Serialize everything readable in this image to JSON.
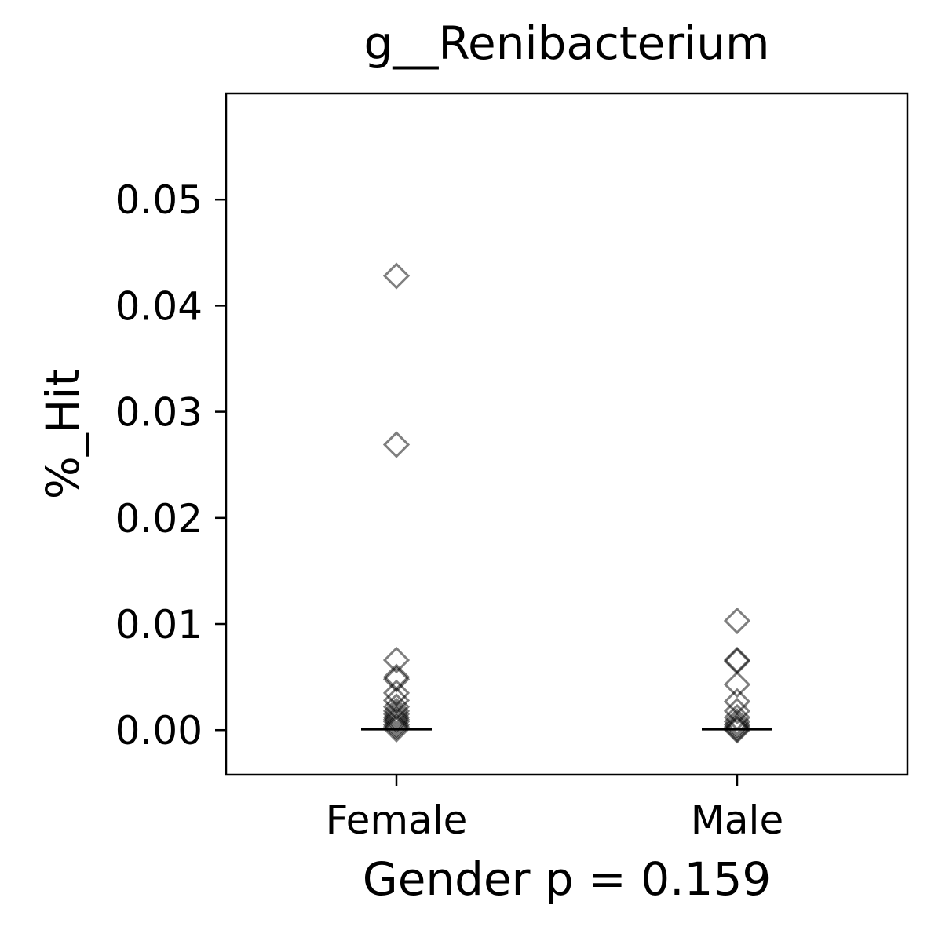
{
  "chart_data": {
    "type": "strip",
    "title": "g__Renibacterium",
    "x_label": "Gender p = 0.159",
    "y_label": "%_Hit",
    "categories": [
      "Female",
      "Male"
    ],
    "points": [
      [
        0.0428,
        0.0269,
        0.0066,
        0.005,
        0.0048,
        0.0035,
        0.0028,
        0.0022,
        0.0018,
        0.0015,
        0.0012,
        0.001,
        0.0008,
        0.0005,
        0.0003,
        0.0001
      ],
      [
        0.0103,
        0.0066,
        0.0065,
        0.0043,
        0.0027,
        0.0018,
        0.0012,
        0.0008,
        0.0005,
        0.0003,
        0.0001,
        0.0
      ]
    ],
    "medians": [
      0.0001,
      0.0001
    ],
    "marker_color": "#000000",
    "ylim": [
      -0.0042,
      0.06
    ],
    "yticks": [
      {
        "value": 0,
        "label": "0.00"
      },
      0.01,
      0.02,
      0.03,
      0.04,
      0.05
    ]
  }
}
